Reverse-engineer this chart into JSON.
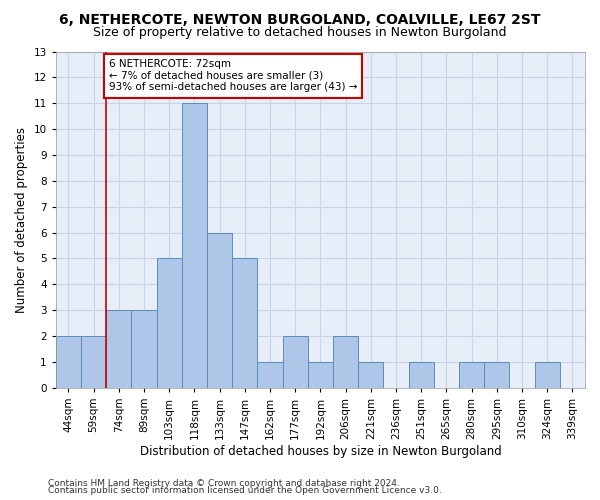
{
  "title1": "6, NETHERCOTE, NEWTON BURGOLAND, COALVILLE, LE67 2ST",
  "title2": "Size of property relative to detached houses in Newton Burgoland",
  "xlabel": "Distribution of detached houses by size in Newton Burgoland",
  "ylabel": "Number of detached properties",
  "footnote1": "Contains HM Land Registry data © Crown copyright and database right 2024.",
  "footnote2": "Contains public sector information licensed under the Open Government Licence v3.0.",
  "categories": [
    "44sqm",
    "59sqm",
    "74sqm",
    "89sqm",
    "103sqm",
    "118sqm",
    "133sqm",
    "147sqm",
    "162sqm",
    "177sqm",
    "192sqm",
    "206sqm",
    "221sqm",
    "236sqm",
    "251sqm",
    "265sqm",
    "280sqm",
    "295sqm",
    "310sqm",
    "324sqm",
    "339sqm"
  ],
  "values": [
    2,
    2,
    3,
    3,
    5,
    11,
    6,
    5,
    1,
    2,
    1,
    2,
    1,
    0,
    1,
    0,
    1,
    1,
    0,
    1,
    0
  ],
  "bar_color": "#aec6e8",
  "bar_edge_color": "#5b8db8",
  "vline_color": "#cc0000",
  "vline_pos": 1.5,
  "annotation_text": "6 NETHERCOTE: 72sqm\n← 7% of detached houses are smaller (3)\n93% of semi-detached houses are larger (43) →",
  "annotation_box_color": "#ffffff",
  "annotation_box_edge": "#cc0000",
  "ylim": [
    0,
    13
  ],
  "yticks": [
    0,
    1,
    2,
    3,
    4,
    5,
    6,
    7,
    8,
    9,
    10,
    11,
    12,
    13
  ],
  "grid_color": "#c8d4e8",
  "background_color": "#e8eef8",
  "title1_fontsize": 10,
  "title2_fontsize": 9,
  "xlabel_fontsize": 8.5,
  "ylabel_fontsize": 8.5,
  "tick_fontsize": 7.5,
  "annot_fontsize": 7.5,
  "footnote_fontsize": 6.5
}
